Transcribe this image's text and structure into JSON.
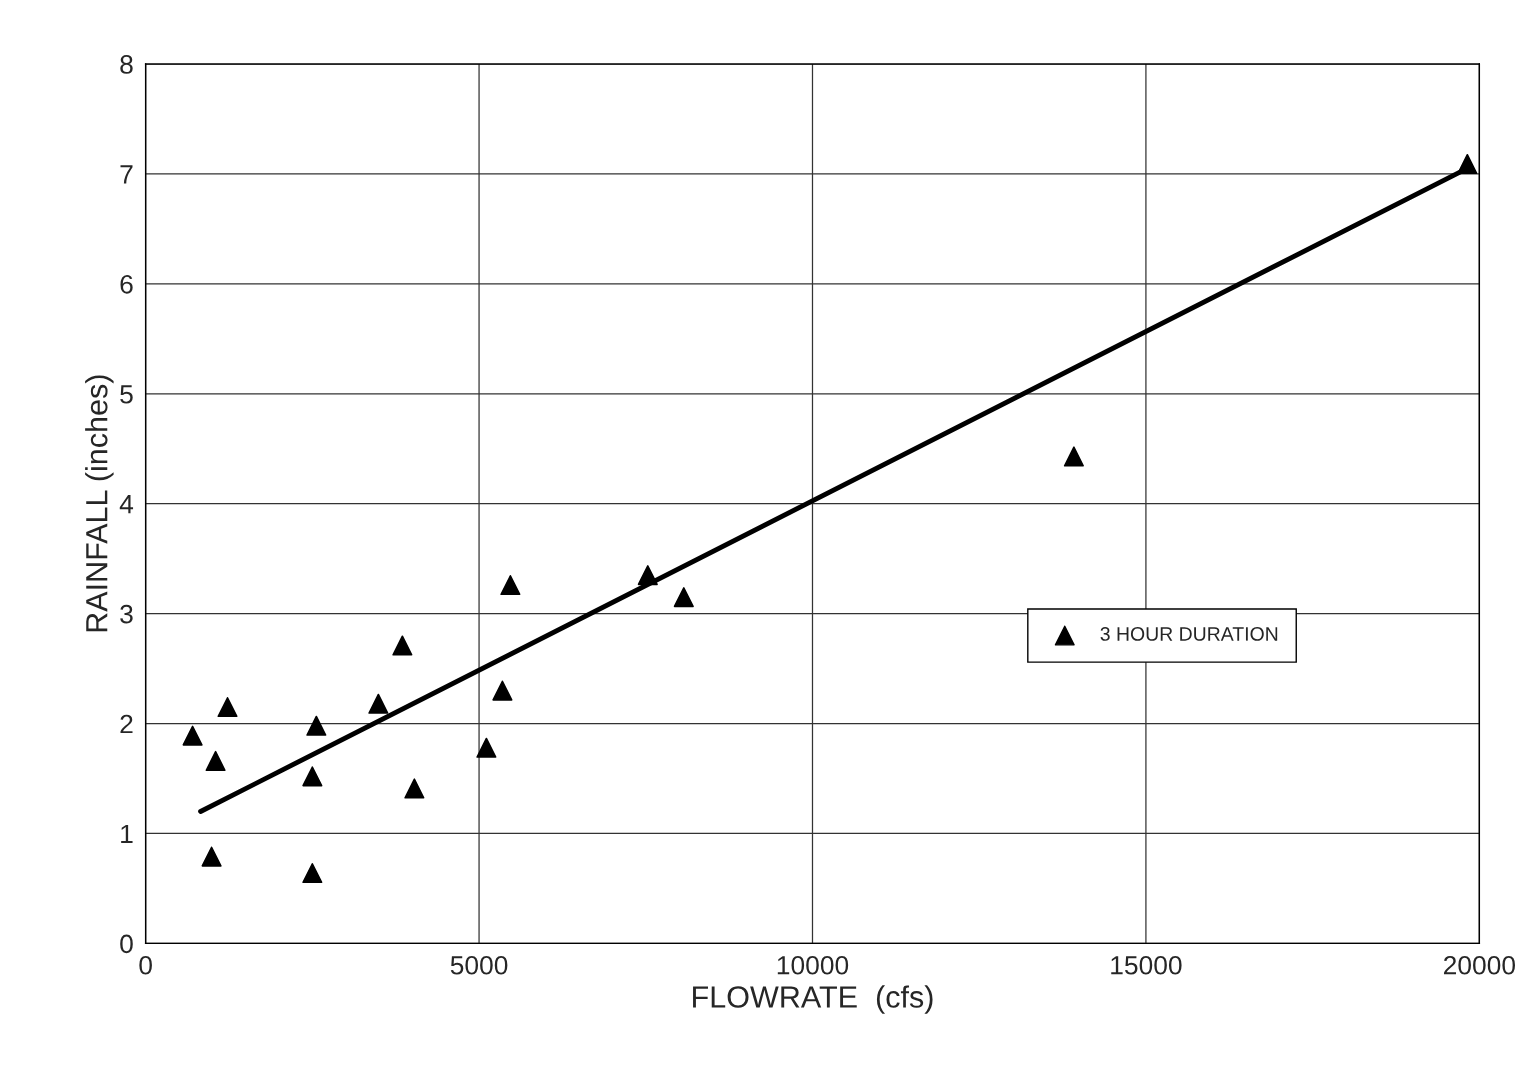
{
  "chart_data": {
    "type": "scatter",
    "xlabel": "FLOWRATE  (cfs)",
    "ylabel": "RAINFALL (inches)",
    "xlim": [
      0,
      20000
    ],
    "xticks": [
      0,
      5000,
      10000,
      15000,
      20000
    ],
    "ylim": [
      0,
      8
    ],
    "yticks": [
      0,
      1,
      2,
      3,
      4,
      5,
      6,
      7,
      8
    ],
    "grid": true,
    "legend": "center right",
    "series": [
      {
        "name": "3 HOUR DURATION",
        "color": "#000000",
        "marker": "triangle",
        "x": [
          704,
          1049,
          1228,
          989,
          2500,
          2560,
          2500,
          3490,
          3850,
          4030,
          5110,
          5350,
          5470,
          7530,
          8070,
          13920,
          19820
        ],
        "values": [
          1.89,
          1.66,
          2.15,
          0.79,
          1.52,
          1.98,
          0.64,
          2.18,
          2.71,
          1.41,
          1.78,
          2.3,
          3.26,
          3.35,
          3.15,
          4.43,
          7.09
        ]
      },
      {
        "type": "line",
        "color": "#000000",
        "line_style": "solid",
        "x": [
          824,
          19820
        ],
        "values": [
          1.2,
          7.05
        ]
      }
    ]
  }
}
